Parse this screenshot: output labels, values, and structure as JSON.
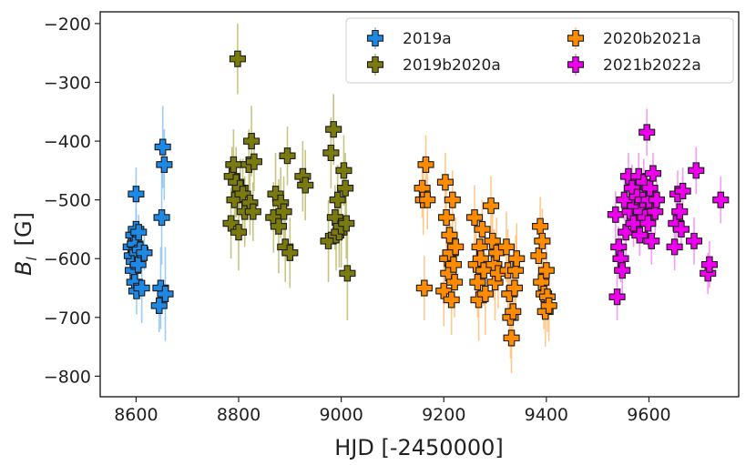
{
  "chart_data": {
    "type": "scatter",
    "title": "",
    "xlabel": "HJD  [-2450000]",
    "ylabel": "B",
    "ylabel_sub": "l",
    "ylabel_unit": "[G]",
    "xlim": [
      8530,
      9775
    ],
    "ylim": [
      -835,
      -180
    ],
    "xticks": [
      8600,
      8800,
      9000,
      9200,
      9400,
      9600
    ],
    "xtick_labels": [
      "8600",
      "8800",
      "9000",
      "9200",
      "9400",
      "9600"
    ],
    "yticks": [
      -200,
      -300,
      -400,
      -500,
      -600,
      -700,
      -800
    ],
    "ytick_labels": [
      "−200",
      "−300",
      "−400",
      "−500",
      "−600",
      "−700",
      "−800"
    ],
    "grid": false,
    "legend_position": "top-right",
    "marker": "plus-filled",
    "series": [
      {
        "name": "2019a",
        "color": "#1e88e5",
        "errcolor": "#8ec3f2",
        "points": [
          [
            8590,
            -580,
            30
          ],
          [
            8592,
            -595,
            25
          ],
          [
            8594,
            -620,
            35
          ],
          [
            8595,
            -560,
            25
          ],
          [
            8596,
            -605,
            40
          ],
          [
            8597,
            -640,
            30
          ],
          [
            8598,
            -575,
            30
          ],
          [
            8600,
            -550,
            35
          ],
          [
            8600,
            -490,
            45
          ],
          [
            8601,
            -655,
            40
          ],
          [
            8602,
            -590,
            30
          ],
          [
            8604,
            -610,
            35
          ],
          [
            8605,
            -555,
            30
          ],
          [
            8608,
            -585,
            40
          ],
          [
            8611,
            -650,
            60
          ],
          [
            8616,
            -590,
            30
          ],
          [
            8645,
            -680,
            45
          ],
          [
            8648,
            -650,
            70
          ],
          [
            8650,
            -530,
            80
          ],
          [
            8652,
            -410,
            70
          ],
          [
            8655,
            -440,
            60
          ],
          [
            8657,
            -660,
            80
          ]
        ]
      },
      {
        "name": "2019b2020a",
        "color": "#7a7a0e",
        "errcolor": "#bcbc6e",
        "points": [
          [
            8785,
            -540,
            60
          ],
          [
            8787,
            -460,
            50
          ],
          [
            8790,
            -440,
            60
          ],
          [
            8792,
            -500,
            55
          ],
          [
            8795,
            -470,
            60
          ],
          [
            8798,
            -260,
            60
          ],
          [
            8800,
            -555,
            65
          ],
          [
            8803,
            -480,
            50
          ],
          [
            8808,
            -490,
            60
          ],
          [
            8812,
            -520,
            60
          ],
          [
            8820,
            -440,
            60
          ],
          [
            8822,
            -505,
            55
          ],
          [
            8825,
            -400,
            60
          ],
          [
            8828,
            -520,
            50
          ],
          [
            8830,
            -435,
            50
          ],
          [
            8868,
            -530,
            60
          ],
          [
            8872,
            -490,
            70
          ],
          [
            8878,
            -545,
            80
          ],
          [
            8882,
            -505,
            60
          ],
          [
            8888,
            -520,
            60
          ],
          [
            8891,
            -580,
            60
          ],
          [
            8895,
            -425,
            50
          ],
          [
            8900,
            -590,
            60
          ],
          [
            8925,
            -460,
            60
          ],
          [
            8930,
            -475,
            60
          ],
          [
            8975,
            -570,
            70
          ],
          [
            8980,
            -420,
            60
          ],
          [
            8985,
            -380,
            60
          ],
          [
            8988,
            -530,
            55
          ],
          [
            8990,
            -560,
            60
          ],
          [
            8993,
            -500,
            60
          ],
          [
            8996,
            -555,
            60
          ],
          [
            9000,
            -545,
            70
          ],
          [
            9005,
            -450,
            60
          ],
          [
            9008,
            -480,
            60
          ],
          [
            9010,
            -540,
            60
          ],
          [
            9012,
            -625,
            80
          ]
        ]
      },
      {
        "name": "2020b2021a",
        "color": "#ff8c00",
        "errcolor": "#ffc07a",
        "points": [
          [
            9158,
            -480,
            50
          ],
          [
            9160,
            -500,
            60
          ],
          [
            9162,
            -650,
            55
          ],
          [
            9165,
            -440,
            50
          ],
          [
            9168,
            -500,
            50
          ],
          [
            9200,
            -655,
            60
          ],
          [
            9203,
            -470,
            50
          ],
          [
            9205,
            -530,
            60
          ],
          [
            9207,
            -600,
            55
          ],
          [
            9209,
            -625,
            60
          ],
          [
            9211,
            -560,
            60
          ],
          [
            9213,
            -590,
            50
          ],
          [
            9215,
            -670,
            60
          ],
          [
            9217,
            -500,
            50
          ],
          [
            9219,
            -610,
            60
          ],
          [
            9221,
            -640,
            60
          ],
          [
            9223,
            -580,
            50
          ],
          [
            9260,
            -530,
            55
          ],
          [
            9263,
            -610,
            60
          ],
          [
            9266,
            -640,
            60
          ],
          [
            9268,
            -670,
            70
          ],
          [
            9270,
            -580,
            55
          ],
          [
            9272,
            -600,
            60
          ],
          [
            9275,
            -550,
            50
          ],
          [
            9278,
            -620,
            60
          ],
          [
            9281,
            -660,
            70
          ],
          [
            9292,
            -510,
            50
          ],
          [
            9295,
            -570,
            55
          ],
          [
            9298,
            -610,
            60
          ],
          [
            9300,
            -640,
            65
          ],
          [
            9303,
            -590,
            60
          ],
          [
            9306,
            -625,
            60
          ],
          [
            9322,
            -580,
            60
          ],
          [
            9325,
            -620,
            70
          ],
          [
            9328,
            -660,
            65
          ],
          [
            9330,
            -700,
            70
          ],
          [
            9332,
            -735,
            60
          ],
          [
            9335,
            -690,
            60
          ],
          [
            9338,
            -650,
            55
          ],
          [
            9340,
            -620,
            60
          ],
          [
            9342,
            -600,
            60
          ],
          [
            9385,
            -595,
            55
          ],
          [
            9388,
            -545,
            50
          ],
          [
            9390,
            -640,
            60
          ],
          [
            9392,
            -570,
            55
          ],
          [
            9395,
            -660,
            60
          ],
          [
            9398,
            -690,
            60
          ],
          [
            9400,
            -620,
            55
          ],
          [
            9402,
            -665,
            60
          ],
          [
            9405,
            -680,
            60
          ]
        ]
      },
      {
        "name": "2021b2022a",
        "color": "#ee00ee",
        "errcolor": "#f58af5",
        "points": [
          [
            9535,
            -525,
            40
          ],
          [
            9538,
            -665,
            40
          ],
          [
            9541,
            -580,
            35
          ],
          [
            9545,
            -600,
            40
          ],
          [
            9548,
            -620,
            45
          ],
          [
            9552,
            -500,
            35
          ],
          [
            9555,
            -555,
            40
          ],
          [
            9560,
            -460,
            40
          ],
          [
            9563,
            -520,
            35
          ],
          [
            9567,
            -480,
            40
          ],
          [
            9570,
            -540,
            40
          ],
          [
            9573,
            -510,
            35
          ],
          [
            9577,
            -495,
            40
          ],
          [
            9580,
            -460,
            40
          ],
          [
            9582,
            -560,
            35
          ],
          [
            9585,
            -520,
            40
          ],
          [
            9588,
            -500,
            40
          ],
          [
            9590,
            -470,
            40
          ],
          [
            9593,
            -530,
            35
          ],
          [
            9596,
            -385,
            40
          ],
          [
            9598,
            -540,
            40
          ],
          [
            9600,
            -500,
            35
          ],
          [
            9602,
            -480,
            40
          ],
          [
            9605,
            -570,
            40
          ],
          [
            9608,
            -455,
            35
          ],
          [
            9612,
            -520,
            40
          ],
          [
            9615,
            -500,
            35
          ],
          [
            9650,
            -580,
            40
          ],
          [
            9653,
            -540,
            35
          ],
          [
            9656,
            -490,
            40
          ],
          [
            9660,
            -520,
            40
          ],
          [
            9663,
            -550,
            35
          ],
          [
            9666,
            -485,
            40
          ],
          [
            9688,
            -570,
            40
          ],
          [
            9692,
            -450,
            40
          ],
          [
            9715,
            -625,
            35
          ],
          [
            9718,
            -610,
            40
          ],
          [
            9740,
            -500,
            40
          ]
        ]
      }
    ]
  }
}
